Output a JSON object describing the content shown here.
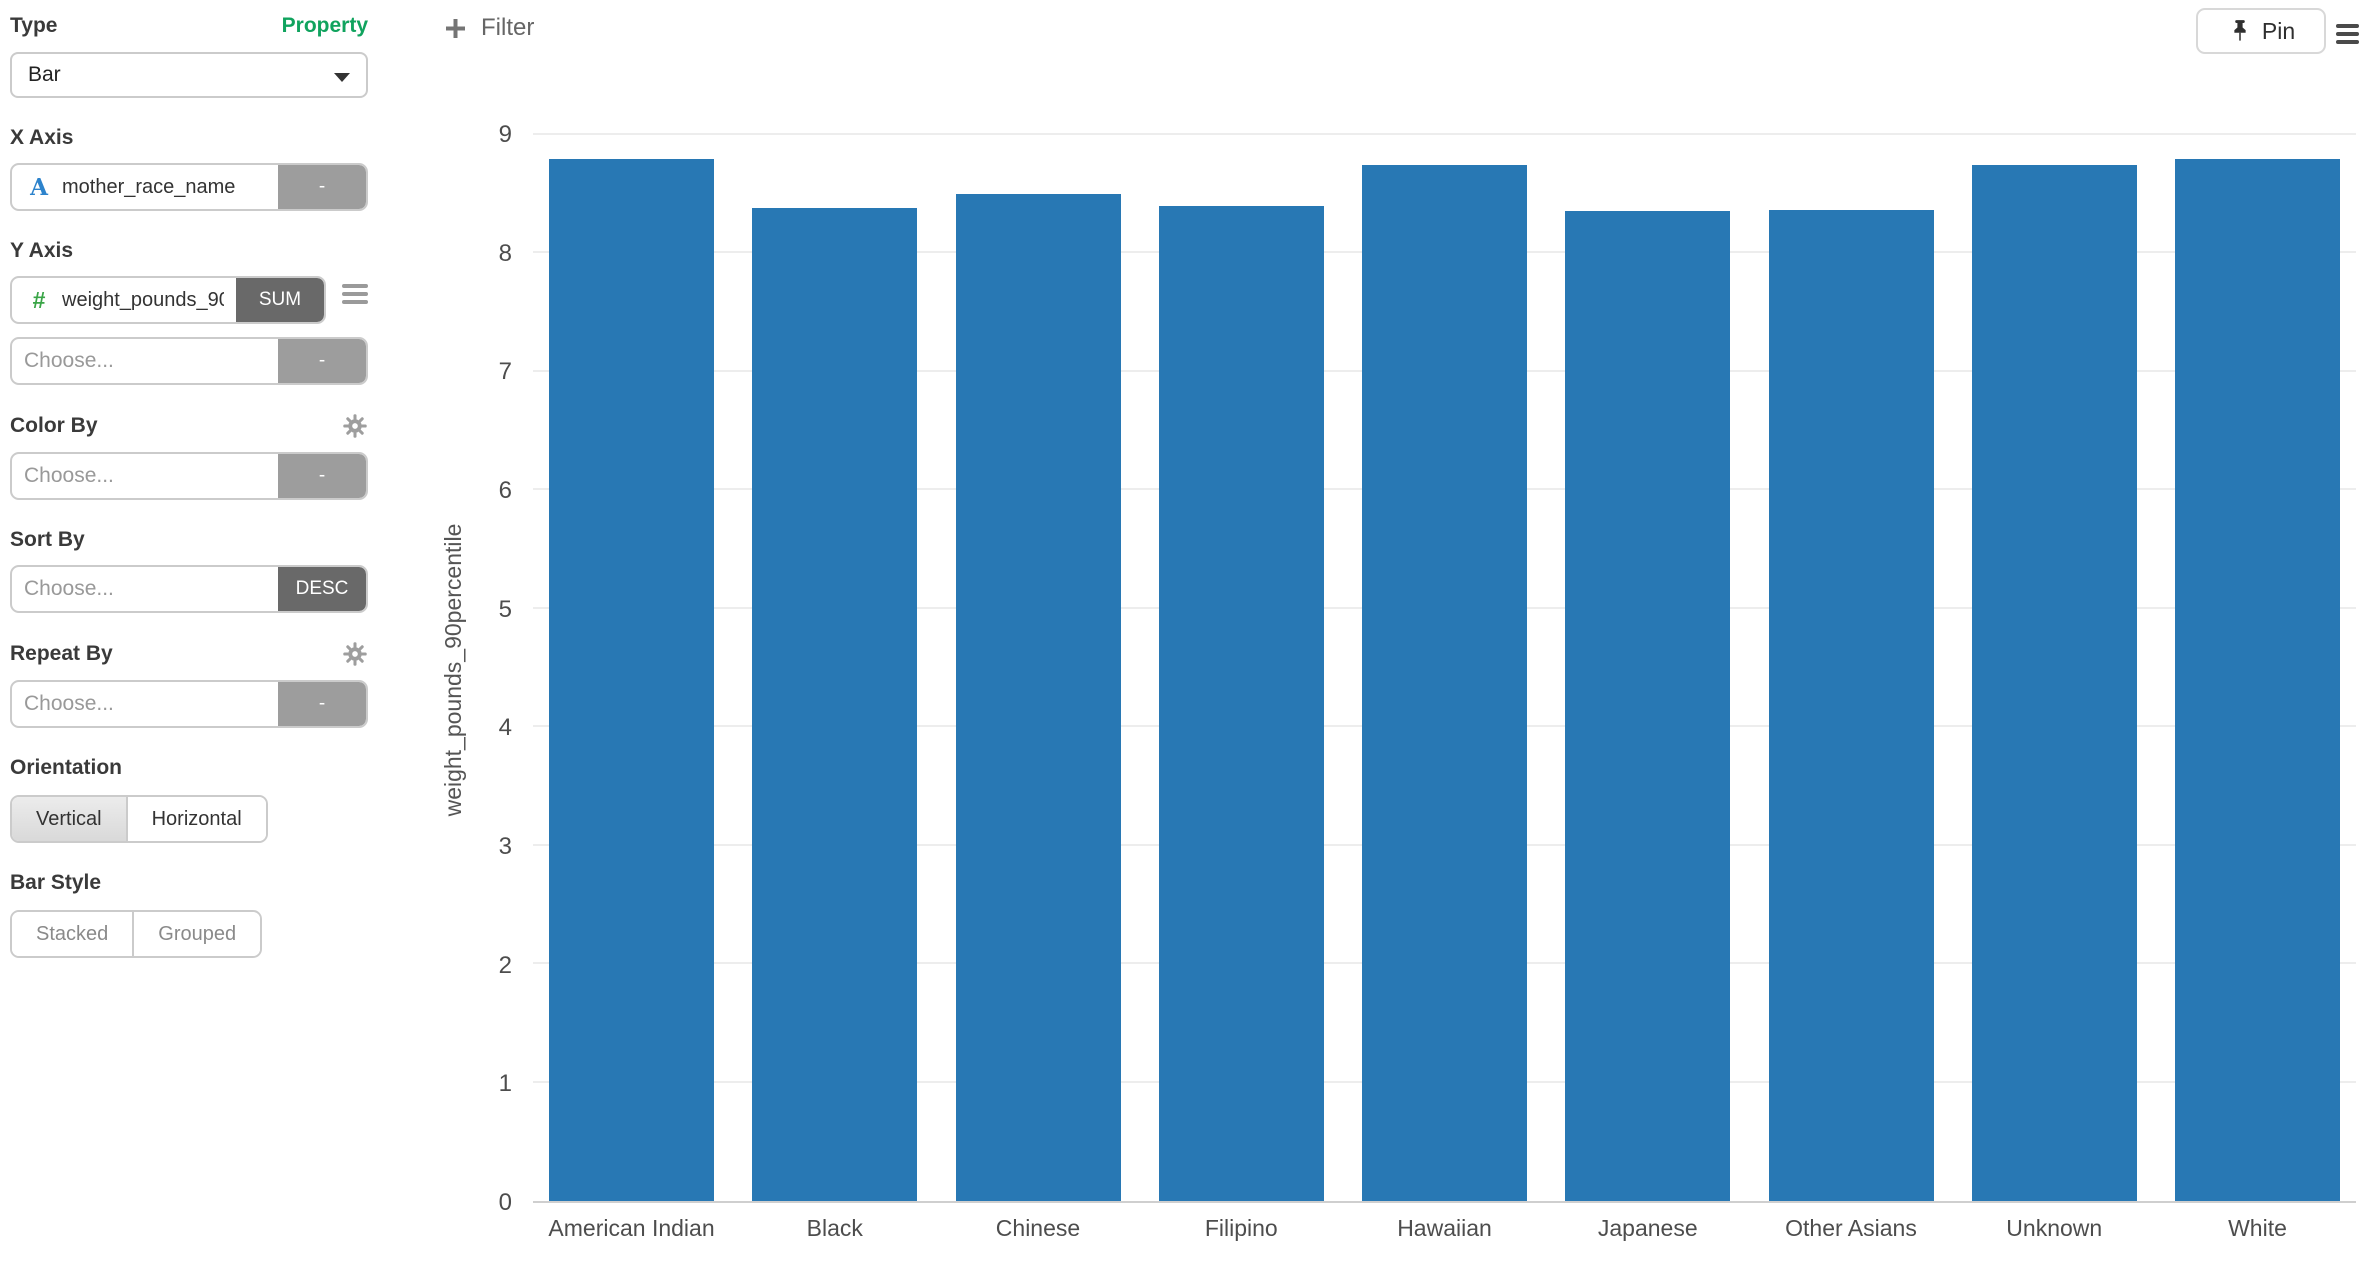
{
  "sidebar": {
    "type": {
      "label": "Type",
      "value": "Bar"
    },
    "property_link": "Property",
    "x_axis": {
      "label": "X Axis",
      "field": "mother_race_name",
      "icon": "A",
      "badge": "-"
    },
    "y_axis": {
      "label": "Y Axis",
      "field": "weight_pounds_90percentile",
      "icon": "#",
      "badge": "SUM"
    },
    "extra_measure": {
      "placeholder": "Choose...",
      "badge": "-"
    },
    "color_by": {
      "label": "Color By",
      "placeholder": "Choose...",
      "badge": "-"
    },
    "sort_by": {
      "label": "Sort By",
      "placeholder": "Choose...",
      "badge": "DESC"
    },
    "repeat_by": {
      "label": "Repeat By",
      "placeholder": "Choose...",
      "badge": "-"
    },
    "orientation": {
      "label": "Orientation",
      "options": [
        "Vertical",
        "Horizontal"
      ],
      "selected": "Vertical"
    },
    "bar_style": {
      "label": "Bar Style",
      "options": [
        "Stacked",
        "Grouped"
      ],
      "selected": ""
    }
  },
  "toolbar": {
    "filter_label": "Filter",
    "pin_label": "Pin"
  },
  "chart_data": {
    "type": "bar",
    "title": "",
    "categories": [
      "American Indian",
      "Black",
      "Chinese",
      "Filipino",
      "Hawaiian",
      "Japanese",
      "Other Asians",
      "Unknown",
      "White"
    ],
    "values": [
      8.8,
      8.38,
      8.5,
      8.4,
      8.75,
      8.36,
      8.37,
      8.75,
      8.8
    ],
    "xlabel": "",
    "ylabel": "weight_pounds_90percentile",
    "yticks": [
      0,
      1,
      2,
      3,
      4,
      5,
      6,
      7,
      8,
      9
    ],
    "ylim": [
      0,
      9
    ],
    "bar_color": "#2878b4",
    "grid": true,
    "legend": false
  },
  "colors": {
    "accent_green": "#10a35e",
    "bar_blue": "#2878b4",
    "badge_light": "#9d9d9d",
    "badge_dark": "#696969"
  }
}
